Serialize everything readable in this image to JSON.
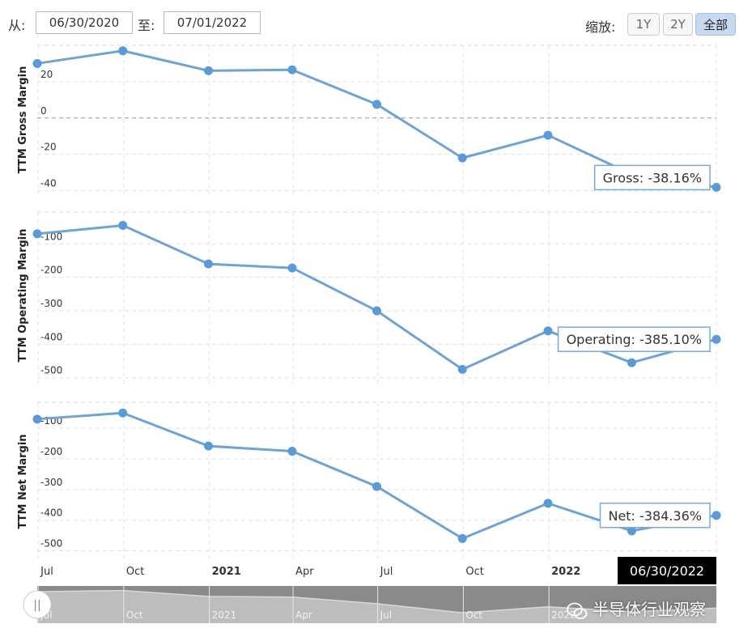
{
  "toolbar": {
    "from_label": "从:",
    "from_value": "06/30/2020",
    "to_label": "至:",
    "to_value": "07/01/2022",
    "zoom_label": "缩放:",
    "zoom_buttons": [
      "1Y",
      "2Y",
      "全部"
    ],
    "zoom_active": "全部"
  },
  "chart_data": [
    {
      "type": "line",
      "ylabel": "TTM Gross Margin",
      "x": [
        "2020-06-30",
        "2020-09-30",
        "2020-12-31",
        "2021-03-31",
        "2021-06-30",
        "2021-09-30",
        "2021-12-31",
        "2022-03-31",
        "2022-06-30"
      ],
      "values": [
        30,
        37,
        26,
        26.5,
        7.5,
        -22,
        -9.5,
        -31,
        -38.16
      ],
      "yticks": [
        20,
        0,
        -20,
        -40
      ],
      "ylim": [
        -42,
        40
      ],
      "tooltip": "Gross: -38.16%",
      "color": "#6fa3d4"
    },
    {
      "type": "line",
      "ylabel": "TTM Operating Margin",
      "x": [
        "2020-06-30",
        "2020-09-30",
        "2020-12-31",
        "2021-03-31",
        "2021-06-30",
        "2021-09-30",
        "2021-12-31",
        "2022-03-31",
        "2022-06-30"
      ],
      "values": [
        -70,
        -45,
        -160,
        -172,
        -300,
        -475,
        -360,
        -455,
        -385.1
      ],
      "yticks": [
        -100,
        -200,
        -300,
        -400,
        -500
      ],
      "ylim": [
        -520,
        -5
      ],
      "tooltip": "Operating: -385.10%",
      "color": "#6fa3d4"
    },
    {
      "type": "line",
      "ylabel": "TTM Net Margin",
      "x": [
        "2020-06-30",
        "2020-09-30",
        "2020-12-31",
        "2021-03-31",
        "2021-06-30",
        "2021-09-30",
        "2021-12-31",
        "2022-03-31",
        "2022-06-30"
      ],
      "values": [
        -70,
        -50,
        -158,
        -175,
        -290,
        -460,
        -345,
        -435,
        -384.36
      ],
      "yticks": [
        -100,
        -200,
        -300,
        -400,
        -500
      ],
      "ylim": [
        -525,
        -15
      ],
      "tooltip": "Net: -384.36%",
      "color": "#6fa3d4"
    }
  ],
  "x_axis": {
    "ticks": [
      {
        "label": "Jul",
        "date": "2020-07-01",
        "bold": false
      },
      {
        "label": "Oct",
        "date": "2020-10-01",
        "bold": false
      },
      {
        "label": "2021",
        "date": "2021-01-01",
        "bold": true
      },
      {
        "label": "Apr",
        "date": "2021-04-01",
        "bold": false
      },
      {
        "label": "Jul",
        "date": "2021-07-01",
        "bold": false
      },
      {
        "label": "Oct",
        "date": "2021-10-01",
        "bold": false
      },
      {
        "label": "2022",
        "date": "2022-01-01",
        "bold": true
      }
    ],
    "range": [
      "2020-06-30",
      "2022-06-30"
    ],
    "crosshair_label": "06/30/2022"
  },
  "navigator": {
    "tick_labels": [
      "Jul",
      "Oct",
      "2021",
      "Apr",
      "Jul",
      "Oct",
      "2022"
    ],
    "handle_glyph": "||"
  },
  "watermark": "半导体行业观察"
}
